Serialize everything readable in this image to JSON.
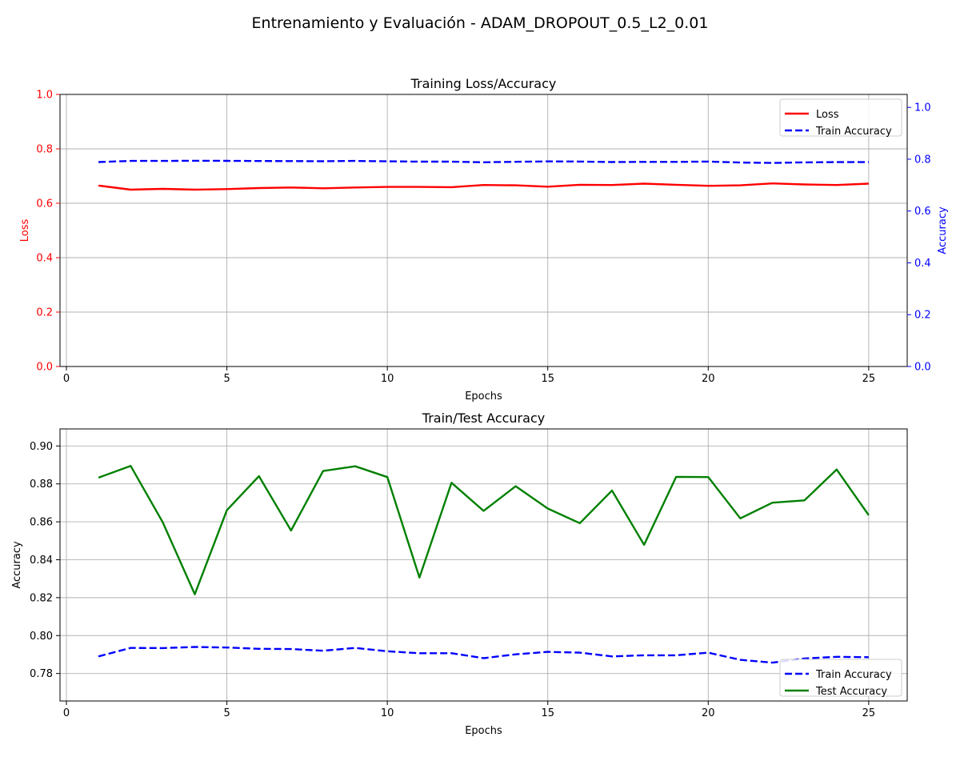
{
  "figure": {
    "suptitle": "Entrenamiento y Evaluación - ADAM_DROPOUT_0.5_L2_0.01"
  },
  "colors": {
    "loss": "#ff0000",
    "train_accuracy": "#0000ff",
    "test_accuracy": "#008000",
    "grid": "#b0b0b0",
    "axis": "#000000"
  },
  "chart_data": [
    {
      "type": "line",
      "title": "Training Loss/Accuracy",
      "xlabel": "Epochs",
      "ylabel": "Loss",
      "ylabel_right": "Accuracy",
      "xlim": [
        -0.2,
        26.2
      ],
      "ylim": [
        0.0,
        1.0
      ],
      "ylim_right": [
        0.0,
        1.05
      ],
      "xticks": [
        0,
        5,
        10,
        15,
        20,
        25
      ],
      "xtick_labels": [
        "0",
        "5",
        "10",
        "15",
        "20",
        "25"
      ],
      "yticks": [
        0.0,
        0.2,
        0.4,
        0.6,
        0.8,
        1.0
      ],
      "ytick_labels": [
        "0.0",
        "0.2",
        "0.4",
        "0.6",
        "0.8",
        "1.0"
      ],
      "yticks_right": [
        0.0,
        0.2,
        0.4,
        0.6,
        0.8,
        1.0
      ],
      "ytick_labels_right": [
        "0.0",
        "0.2",
        "0.4",
        "0.6",
        "0.8",
        "1.0"
      ],
      "grid": true,
      "legend_position": "upper right",
      "x": [
        1,
        2,
        3,
        4,
        5,
        6,
        7,
        8,
        9,
        10,
        11,
        12,
        13,
        14,
        15,
        16,
        17,
        18,
        19,
        20,
        21,
        22,
        23,
        24,
        25
      ],
      "series": [
        {
          "name": "Loss",
          "axis": "left",
          "style": "solid",
          "color_key": "loss",
          "values": [
            0.665,
            0.65,
            0.653,
            0.65,
            0.652,
            0.656,
            0.658,
            0.655,
            0.658,
            0.66,
            0.66,
            0.659,
            0.667,
            0.666,
            0.661,
            0.668,
            0.667,
            0.672,
            0.668,
            0.664,
            0.666,
            0.673,
            0.669,
            0.667,
            0.672
          ]
        },
        {
          "name": "Train Accuracy",
          "axis": "right",
          "style": "dashed",
          "color_key": "train_accuracy",
          "values": [
            0.789,
            0.7935,
            0.7934,
            0.794,
            0.7937,
            0.793,
            0.7929,
            0.792,
            0.7935,
            0.7917,
            0.7907,
            0.7907,
            0.7881,
            0.7901,
            0.7914,
            0.791,
            0.789,
            0.7896,
            0.7896,
            0.791,
            0.7872,
            0.7857,
            0.7879,
            0.7888,
            0.7886
          ]
        }
      ]
    },
    {
      "type": "line",
      "title": "Train/Test Accuracy",
      "xlabel": "Epochs",
      "ylabel": "Accuracy",
      "xlim": [
        -0.2,
        26.2
      ],
      "ylim": [
        0.7655,
        0.909
      ],
      "xticks": [
        0,
        5,
        10,
        15,
        20,
        25
      ],
      "xtick_labels": [
        "0",
        "5",
        "10",
        "15",
        "20",
        "25"
      ],
      "yticks": [
        0.78,
        0.8,
        0.82,
        0.84,
        0.86,
        0.88,
        0.9
      ],
      "ytick_labels": [
        "0.78",
        "0.80",
        "0.82",
        "0.84",
        "0.86",
        "0.88",
        "0.90"
      ],
      "grid": true,
      "legend_position": "lower right",
      "x": [
        1,
        2,
        3,
        4,
        5,
        6,
        7,
        8,
        9,
        10,
        11,
        12,
        13,
        14,
        15,
        16,
        17,
        18,
        19,
        20,
        21,
        22,
        23,
        24,
        25
      ],
      "series": [
        {
          "name": "Train Accuracy",
          "style": "dashed",
          "color_key": "train_accuracy",
          "values": [
            0.789,
            0.7935,
            0.7934,
            0.794,
            0.7937,
            0.793,
            0.7929,
            0.792,
            0.7935,
            0.7917,
            0.7907,
            0.7907,
            0.7881,
            0.7901,
            0.7914,
            0.791,
            0.789,
            0.7896,
            0.7896,
            0.791,
            0.7872,
            0.7857,
            0.7879,
            0.7888,
            0.7886
          ]
        },
        {
          "name": "Test Accuracy",
          "style": "solid",
          "color_key": "test_accuracy",
          "values": [
            0.8833,
            0.8895,
            0.8598,
            0.8218,
            0.8661,
            0.8841,
            0.8554,
            0.8868,
            0.8893,
            0.8836,
            0.8306,
            0.8806,
            0.8658,
            0.8788,
            0.867,
            0.8593,
            0.8765,
            0.8479,
            0.8837,
            0.8836,
            0.8618,
            0.8701,
            0.8713,
            0.8876,
            0.8635
          ]
        }
      ]
    }
  ]
}
